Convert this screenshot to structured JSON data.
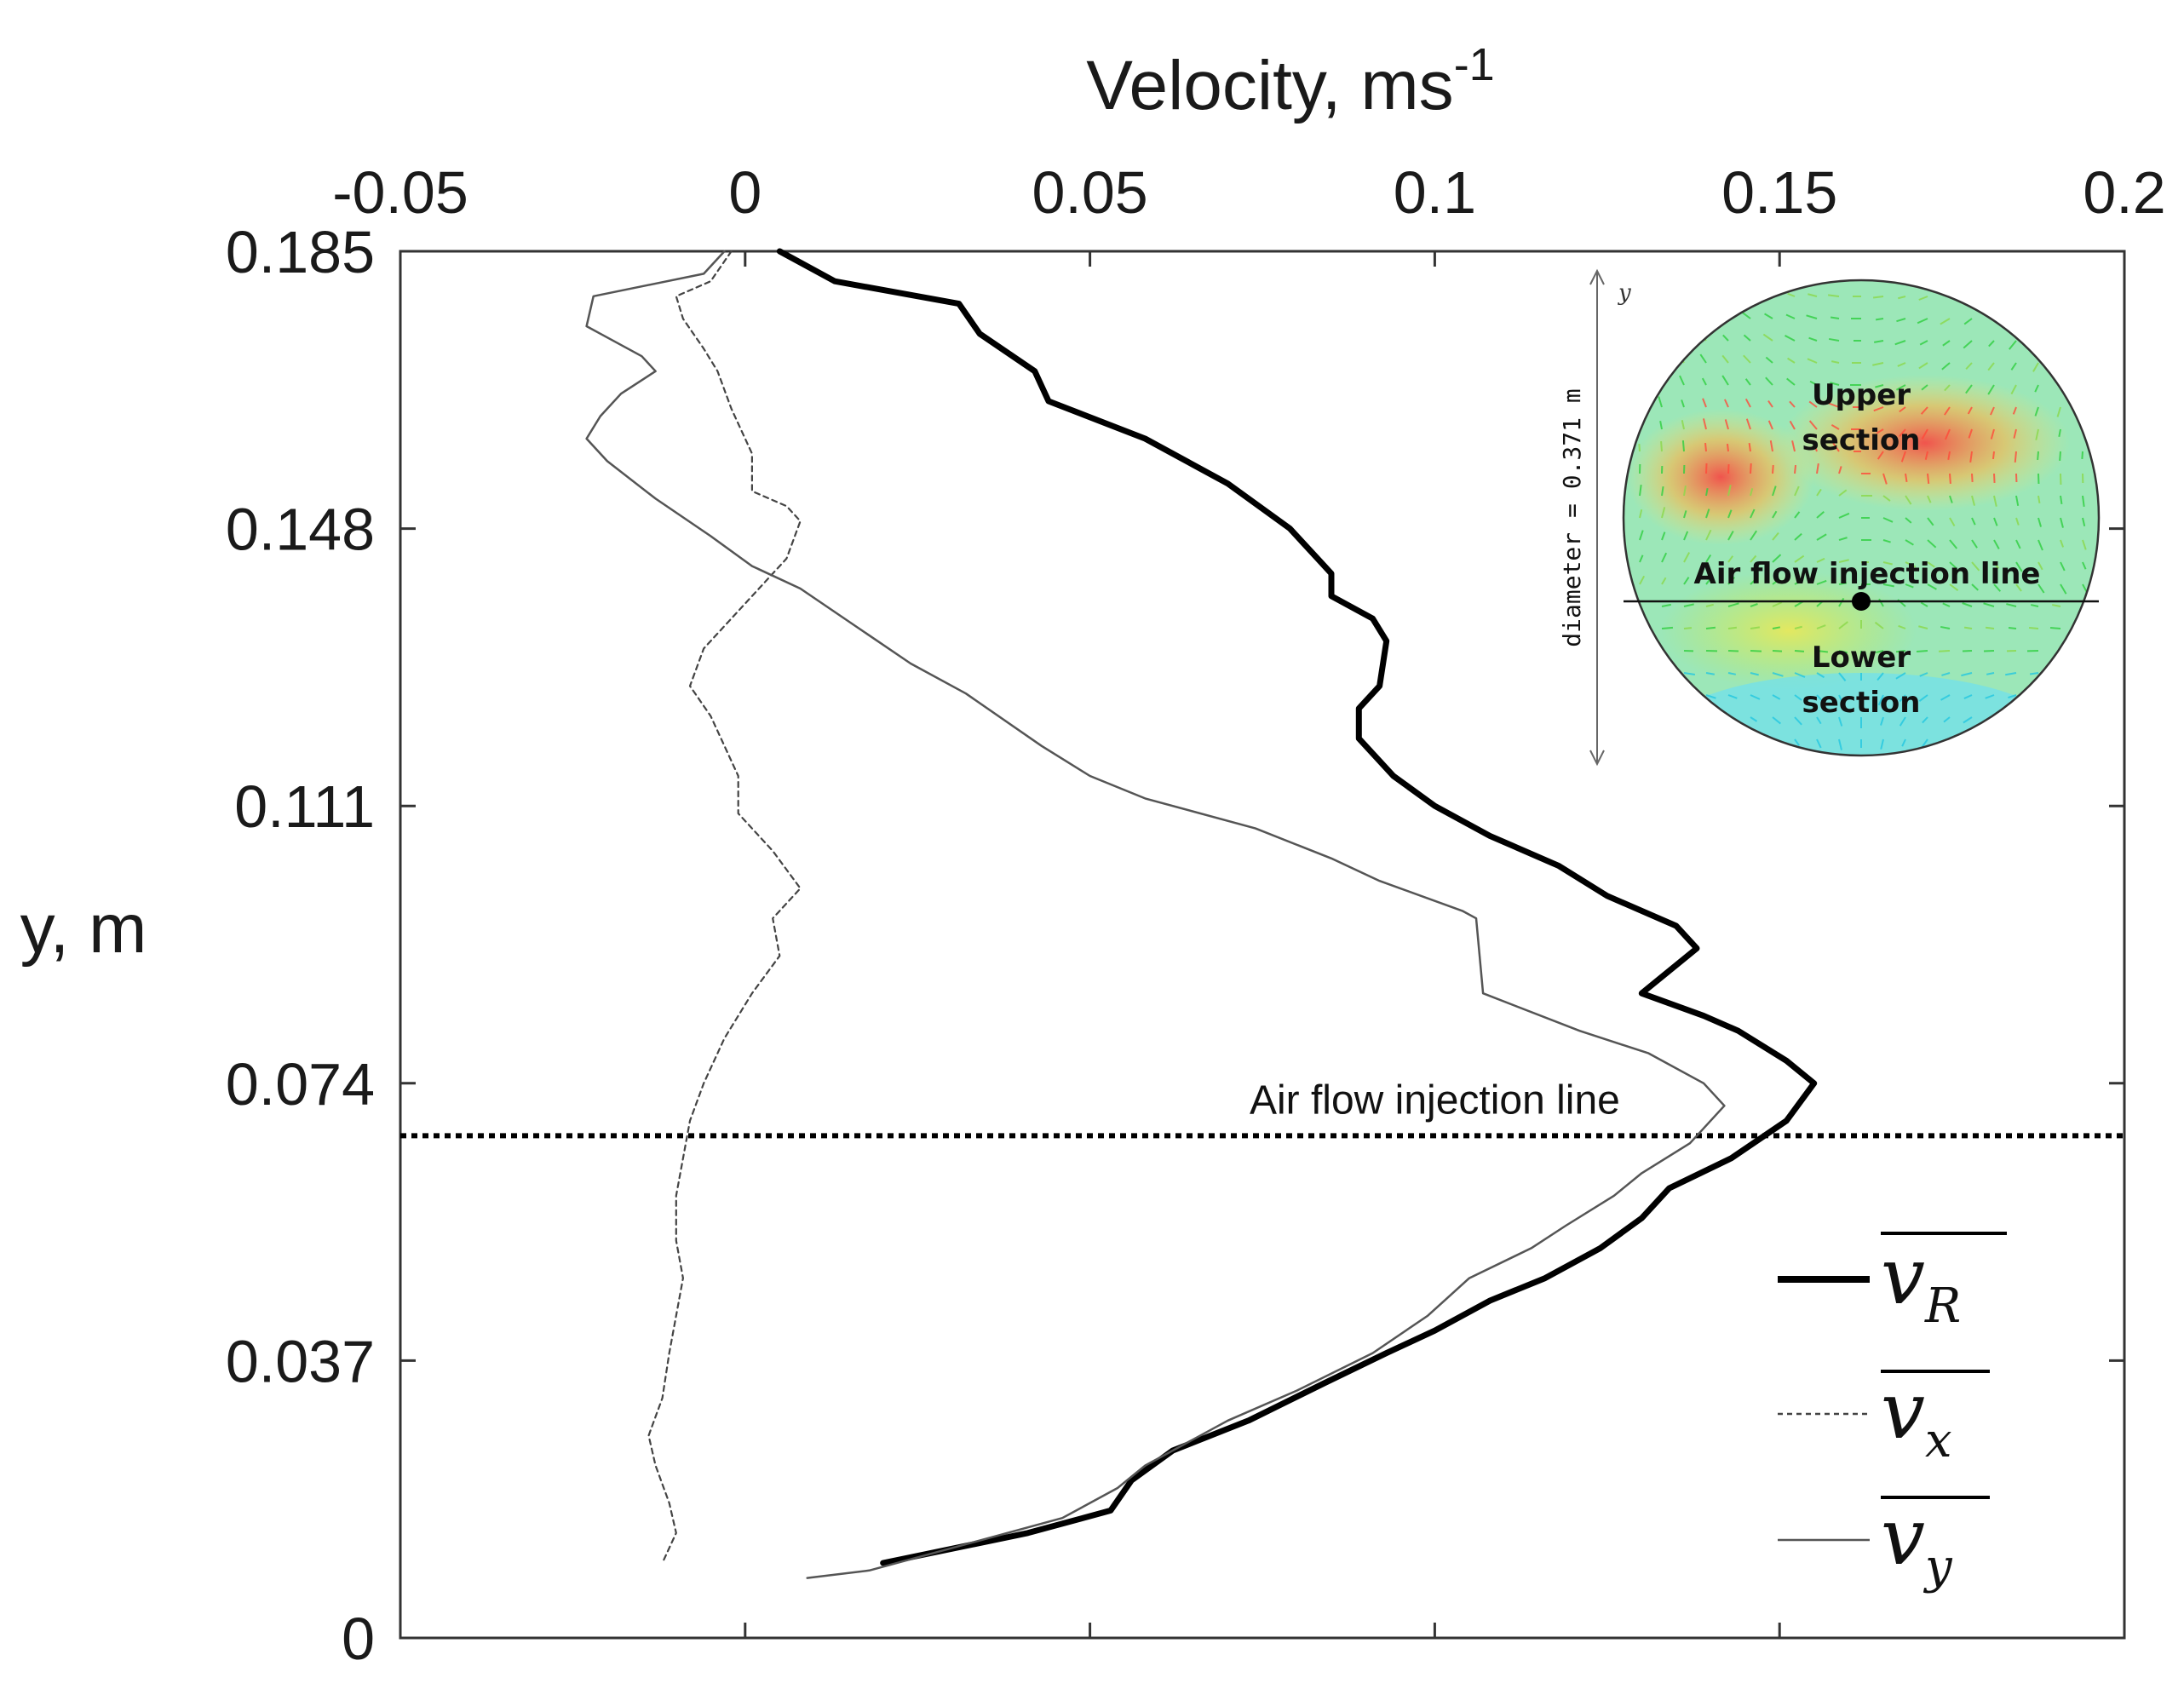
{
  "chart_data": {
    "type": "line",
    "title": "",
    "xlabel": "Velocity, ms",
    "xlabel_exponent": "-1",
    "ylabel": "y, m",
    "xlim": [
      -0.05,
      0.2
    ],
    "ylim": [
      0,
      0.185
    ],
    "x_ticks": [
      -0.05,
      0,
      0.05,
      0.1,
      0.15,
      0.2
    ],
    "x_tick_labels": [
      "-0.05",
      "0",
      "0.05",
      "0.1",
      "0.15",
      "0.2"
    ],
    "y_ticks": [
      0,
      0.037,
      0.074,
      0.111,
      0.148,
      0.185
    ],
    "y_tick_labels": [
      "0",
      "0.037",
      "0.074",
      "0.111",
      "0.148",
      "0.185"
    ],
    "x_axis_position": "top",
    "grid": false,
    "legend_position": "bottom-right",
    "series": [
      {
        "name": "v_R",
        "legend_base": "v",
        "legend_sub": "R",
        "style": "thick-solid",
        "color": "#000000",
        "points": [
          [
            0.005,
            0.185
          ],
          [
            0.013,
            0.181
          ],
          [
            0.031,
            0.178
          ],
          [
            0.034,
            0.174
          ],
          [
            0.042,
            0.169
          ],
          [
            0.044,
            0.165
          ],
          [
            0.058,
            0.16
          ],
          [
            0.07,
            0.154
          ],
          [
            0.079,
            0.148
          ],
          [
            0.083,
            0.144
          ],
          [
            0.085,
            0.142
          ],
          [
            0.085,
            0.139
          ],
          [
            0.091,
            0.136
          ],
          [
            0.093,
            0.133
          ],
          [
            0.092,
            0.127
          ],
          [
            0.089,
            0.124
          ],
          [
            0.089,
            0.12
          ],
          [
            0.094,
            0.115
          ],
          [
            0.1,
            0.111
          ],
          [
            0.108,
            0.107
          ],
          [
            0.118,
            0.103
          ],
          [
            0.125,
            0.099
          ],
          [
            0.135,
            0.095
          ],
          [
            0.138,
            0.092
          ],
          [
            0.13,
            0.086
          ],
          [
            0.139,
            0.083
          ],
          [
            0.144,
            0.081
          ],
          [
            0.151,
            0.077
          ],
          [
            0.155,
            0.074
          ],
          [
            0.151,
            0.069
          ],
          [
            0.143,
            0.064
          ],
          [
            0.134,
            0.06
          ],
          [
            0.13,
            0.056
          ],
          [
            0.124,
            0.052
          ],
          [
            0.116,
            0.048
          ],
          [
            0.108,
            0.045
          ],
          [
            0.1,
            0.041
          ],
          [
            0.093,
            0.038
          ],
          [
            0.084,
            0.034
          ],
          [
            0.073,
            0.029
          ],
          [
            0.062,
            0.025
          ],
          [
            0.056,
            0.021
          ],
          [
            0.053,
            0.017
          ],
          [
            0.041,
            0.014
          ],
          [
            0.02,
            0.01
          ]
        ]
      },
      {
        "name": "v_x",
        "legend_base": "v",
        "legend_sub": "x",
        "style": "dashed",
        "color": "#444444",
        "points": [
          [
            -0.002,
            0.185
          ],
          [
            -0.005,
            0.181
          ],
          [
            -0.01,
            0.179
          ],
          [
            -0.009,
            0.176
          ],
          [
            -0.006,
            0.172
          ],
          [
            -0.004,
            0.169
          ],
          [
            -0.002,
            0.164
          ],
          [
            0.001,
            0.158
          ],
          [
            0.001,
            0.153
          ],
          [
            0.006,
            0.151
          ],
          [
            0.008,
            0.149
          ],
          [
            0.006,
            0.144
          ],
          [
            0.002,
            0.14
          ],
          [
            -0.002,
            0.136
          ],
          [
            -0.006,
            0.132
          ],
          [
            -0.008,
            0.127
          ],
          [
            -0.005,
            0.123
          ],
          [
            -0.003,
            0.119
          ],
          [
            -0.001,
            0.115
          ],
          [
            -0.001,
            0.11
          ],
          [
            0.004,
            0.105
          ],
          [
            0.008,
            0.1
          ],
          [
            0.004,
            0.096
          ],
          [
            0.005,
            0.091
          ],
          [
            0.001,
            0.086
          ],
          [
            -0.003,
            0.08
          ],
          [
            -0.006,
            0.074
          ],
          [
            -0.008,
            0.069
          ],
          [
            -0.009,
            0.064
          ],
          [
            -0.01,
            0.059
          ],
          [
            -0.01,
            0.053
          ],
          [
            -0.009,
            0.048
          ],
          [
            -0.01,
            0.043
          ],
          [
            -0.011,
            0.038
          ],
          [
            -0.012,
            0.032
          ],
          [
            -0.014,
            0.027
          ],
          [
            -0.013,
            0.023
          ],
          [
            -0.011,
            0.018
          ],
          [
            -0.01,
            0.014
          ],
          [
            -0.012,
            0.01
          ]
        ]
      },
      {
        "name": "v_y",
        "legend_base": "v",
        "legend_sub": "y",
        "style": "thin-solid",
        "color": "#555555",
        "points": [
          [
            -0.003,
            0.185
          ],
          [
            -0.006,
            0.182
          ],
          [
            -0.022,
            0.179
          ],
          [
            -0.023,
            0.175
          ],
          [
            -0.021,
            0.174
          ],
          [
            -0.015,
            0.171
          ],
          [
            -0.013,
            0.169
          ],
          [
            -0.018,
            0.166
          ],
          [
            -0.021,
            0.163
          ],
          [
            -0.023,
            0.16
          ],
          [
            -0.02,
            0.157
          ],
          [
            -0.013,
            0.152
          ],
          [
            -0.005,
            0.147
          ],
          [
            0.001,
            0.143
          ],
          [
            0.008,
            0.14
          ],
          [
            0.016,
            0.135
          ],
          [
            0.024,
            0.13
          ],
          [
            0.032,
            0.126
          ],
          [
            0.043,
            0.119
          ],
          [
            0.05,
            0.115
          ],
          [
            0.058,
            0.112
          ],
          [
            0.074,
            0.108
          ],
          [
            0.085,
            0.104
          ],
          [
            0.092,
            0.101
          ],
          [
            0.104,
            0.097
          ],
          [
            0.106,
            0.096
          ],
          [
            0.107,
            0.086
          ],
          [
            0.121,
            0.081
          ],
          [
            0.131,
            0.078
          ],
          [
            0.139,
            0.074
          ],
          [
            0.142,
            0.071
          ],
          [
            0.137,
            0.066
          ],
          [
            0.13,
            0.062
          ],
          [
            0.126,
            0.059
          ],
          [
            0.119,
            0.055
          ],
          [
            0.114,
            0.052
          ],
          [
            0.105,
            0.048
          ],
          [
            0.099,
            0.043
          ],
          [
            0.091,
            0.038
          ],
          [
            0.08,
            0.033
          ],
          [
            0.07,
            0.029
          ],
          [
            0.058,
            0.023
          ],
          [
            0.054,
            0.02
          ],
          [
            0.046,
            0.016
          ],
          [
            0.03,
            0.012
          ],
          [
            0.018,
            0.009
          ],
          [
            0.009,
            0.008
          ]
        ]
      }
    ],
    "reference_lines": [
      {
        "type": "horizontal",
        "y": 0.067,
        "style": "dotted",
        "label": "Air flow injection line"
      }
    ],
    "inset": {
      "description_labels": {
        "upper": "Upper section",
        "upper_line1": "Upper",
        "upper_line2": "section",
        "injection": "Air flow injection line",
        "lower_line1": "Lower",
        "lower_line2": "section",
        "diameter": "diameter = 0.371 m",
        "axis": "y"
      }
    }
  }
}
